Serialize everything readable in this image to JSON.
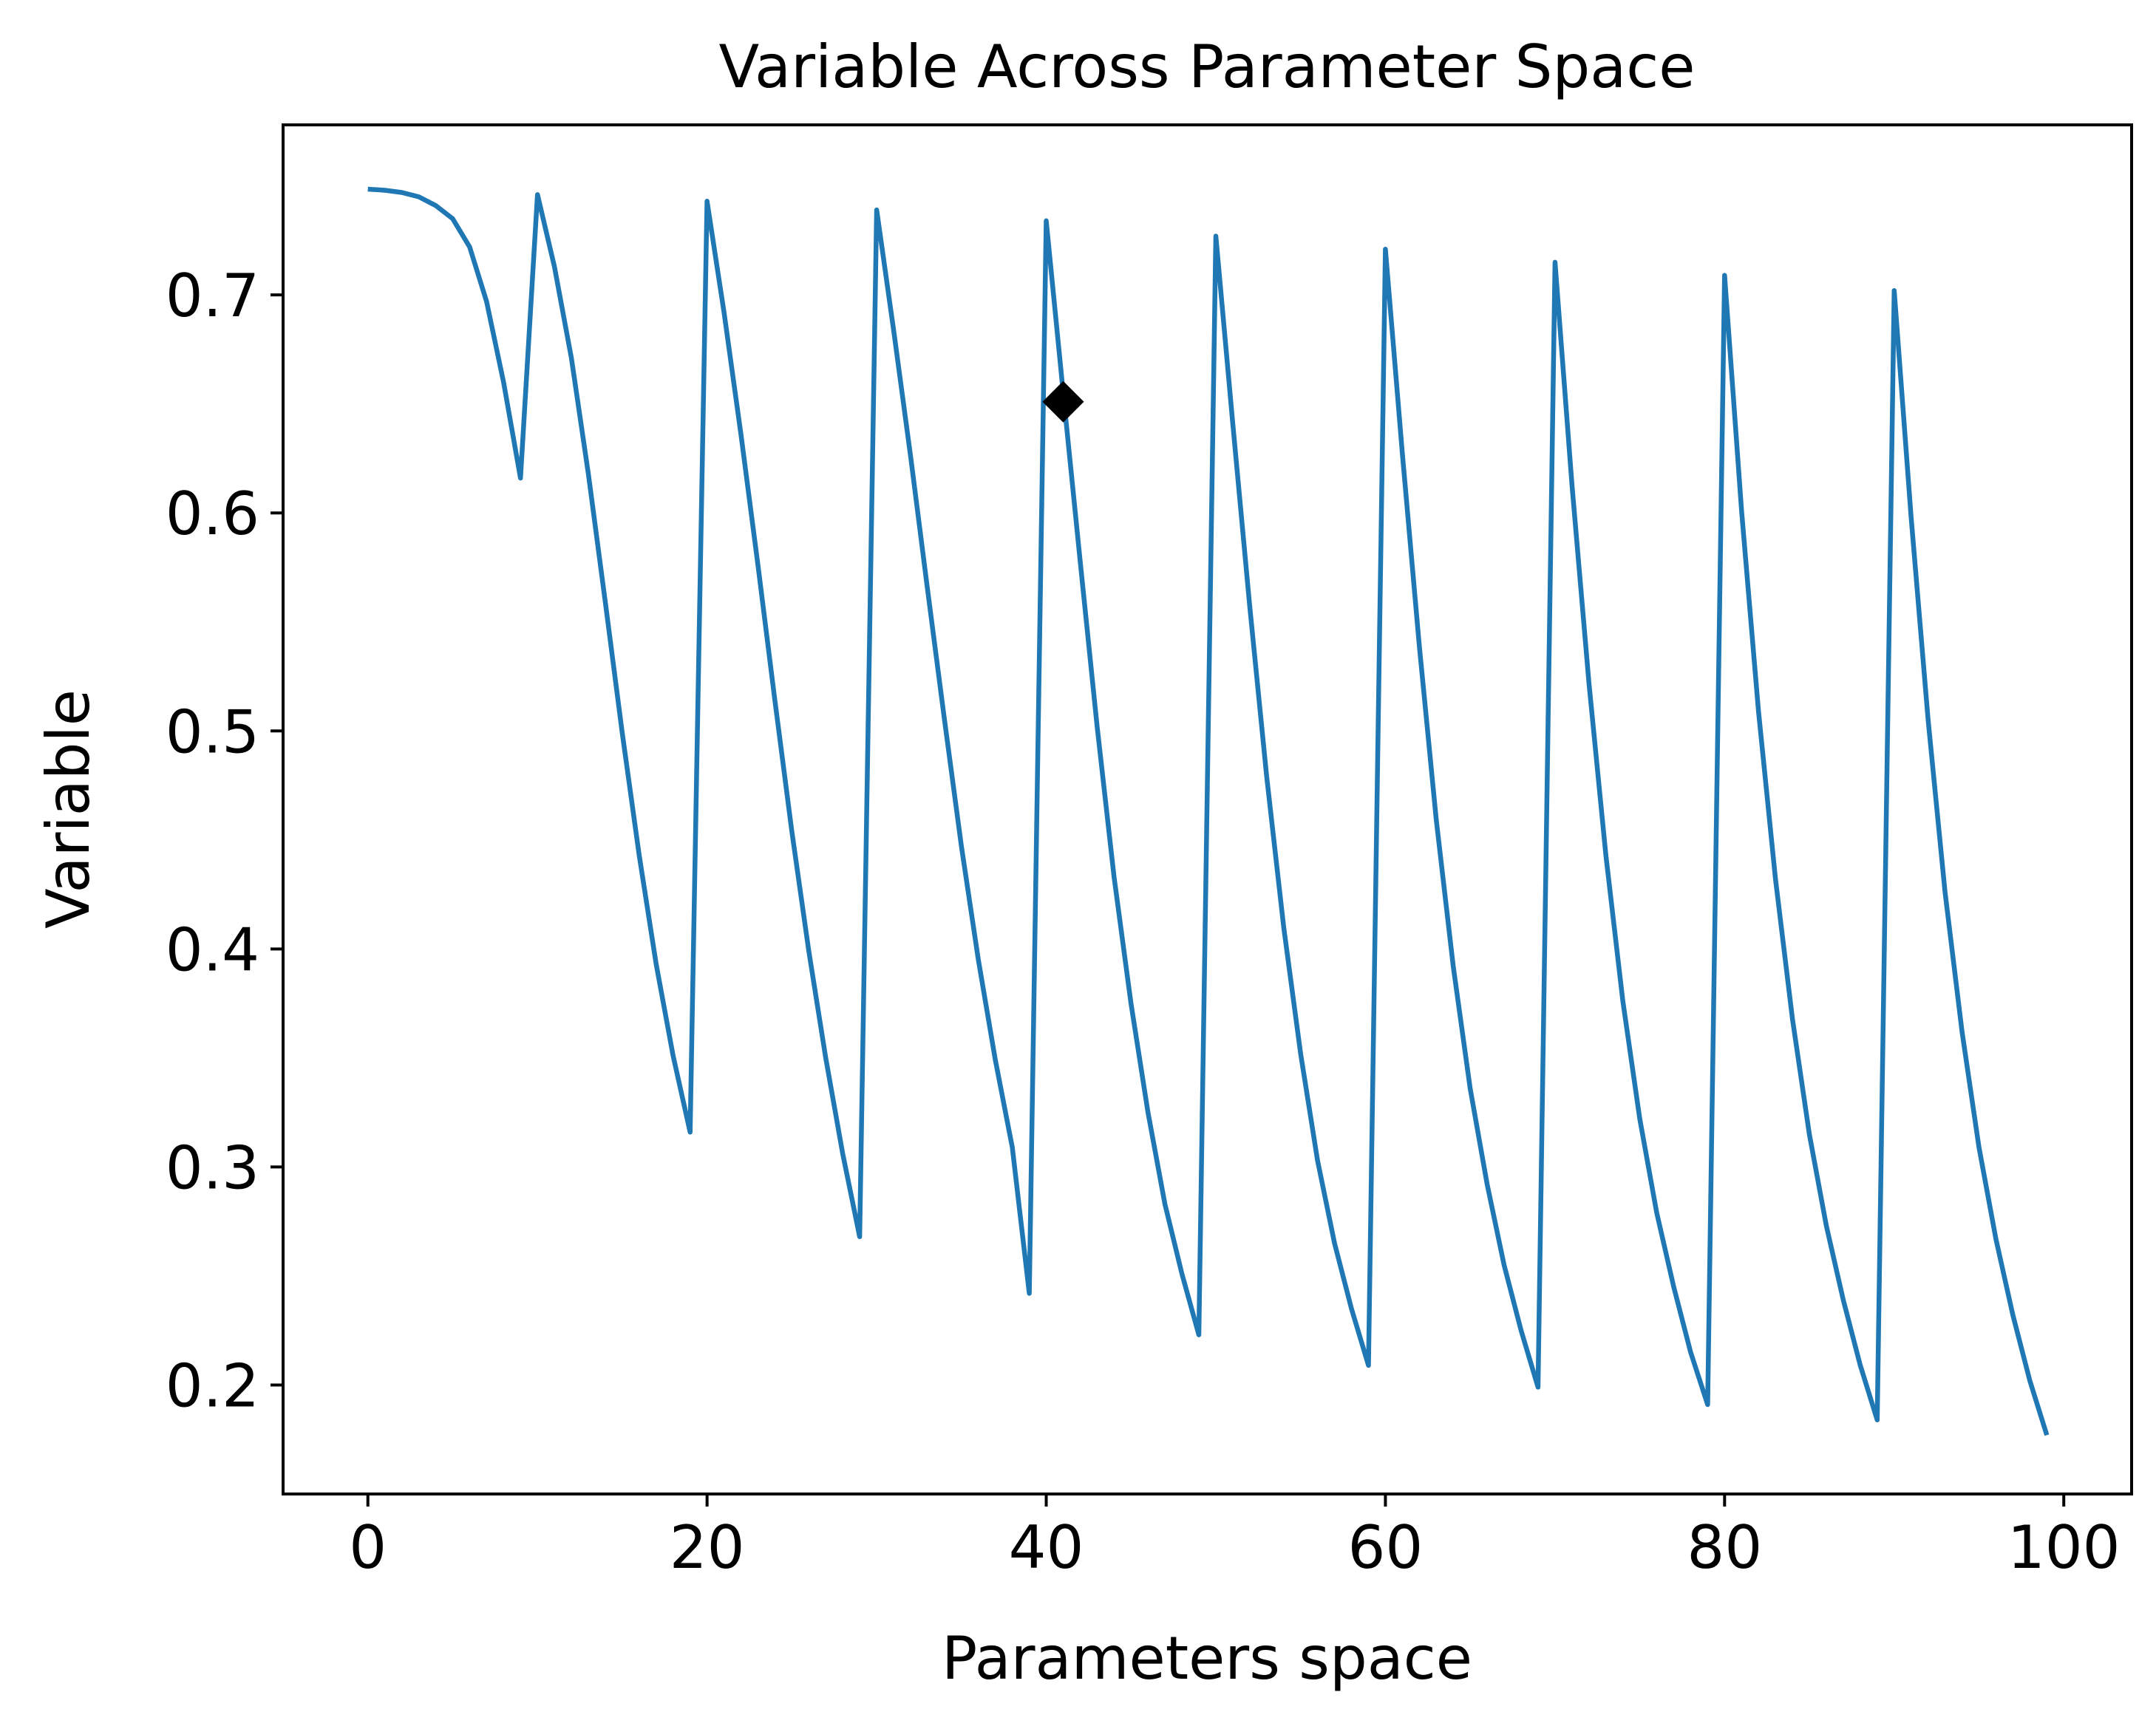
{
  "chart_data": {
    "type": "line",
    "title": "Variable Across Parameter Space",
    "xlabel": "Parameters space",
    "ylabel": "Variable",
    "xlim": [
      -5,
      104
    ],
    "ylim": [
      0.15,
      0.778
    ],
    "xticks": [
      0,
      20,
      40,
      60,
      80,
      100
    ],
    "yticks": [
      0.2,
      0.3,
      0.4,
      0.5,
      0.6,
      0.7
    ],
    "xtick_labels": [
      "0",
      "20",
      "40",
      "60",
      "80",
      "100"
    ],
    "ytick_labels": [
      "0.2",
      "0.3",
      "0.4",
      "0.5",
      "0.6",
      "0.7"
    ],
    "grid": false,
    "line_color": "#1f77b4",
    "marker_color": "#000000",
    "series": [
      {
        "x": [
          0,
          1,
          2,
          3,
          4,
          5,
          6,
          7,
          8,
          9,
          10,
          11,
          12,
          13,
          14,
          15,
          16,
          17,
          18,
          19,
          20,
          21,
          22,
          23,
          24,
          25,
          26,
          27,
          28,
          29,
          30,
          31,
          32,
          33,
          34,
          35,
          36,
          37,
          38,
          39,
          40,
          41,
          42,
          43,
          44,
          45,
          46,
          47,
          48,
          49,
          50,
          51,
          52,
          53,
          54,
          55,
          56,
          57,
          58,
          59,
          60,
          61,
          62,
          63,
          64,
          65,
          66,
          67,
          68,
          69,
          70,
          71,
          72,
          73,
          74,
          75,
          76,
          77,
          78,
          79,
          80,
          81,
          82,
          83,
          84,
          85,
          86,
          87,
          88,
          89,
          90,
          91,
          92,
          93,
          94,
          95,
          96,
          97,
          98,
          99
        ],
        "values": [
          0.7485,
          0.748,
          0.747,
          0.745,
          0.741,
          0.735,
          0.722,
          0.697,
          0.66,
          0.616,
          0.746,
          0.713,
          0.671,
          0.618,
          0.559,
          0.499,
          0.443,
          0.393,
          0.351,
          0.316,
          0.743,
          0.692,
          0.636,
          0.576,
          0.514,
          0.454,
          0.399,
          0.35,
          0.306,
          0.268,
          0.739,
          0.684,
          0.626,
          0.565,
          0.505,
          0.447,
          0.395,
          0.349,
          0.309,
          0.242,
          0.734,
          0.655,
          0.578,
          0.502,
          0.433,
          0.375,
          0.325,
          0.283,
          0.251,
          0.223,
          0.727,
          0.641,
          0.557,
          0.479,
          0.41,
          0.352,
          0.303,
          0.265,
          0.235,
          0.209,
          0.721,
          0.627,
          0.539,
          0.459,
          0.392,
          0.336,
          0.292,
          0.255,
          0.225,
          0.199,
          0.715,
          0.613,
          0.522,
          0.443,
          0.376,
          0.322,
          0.279,
          0.245,
          0.215,
          0.191,
          0.709,
          0.601,
          0.509,
          0.432,
          0.368,
          0.315,
          0.273,
          0.239,
          0.209,
          0.184,
          0.702,
          0.598,
          0.505,
          0.426,
          0.362,
          0.309,
          0.267,
          0.232,
          0.202,
          0.177
        ]
      }
    ],
    "markers": [
      {
        "shape": "diamond",
        "x": 41,
        "y": 0.651
      }
    ]
  }
}
